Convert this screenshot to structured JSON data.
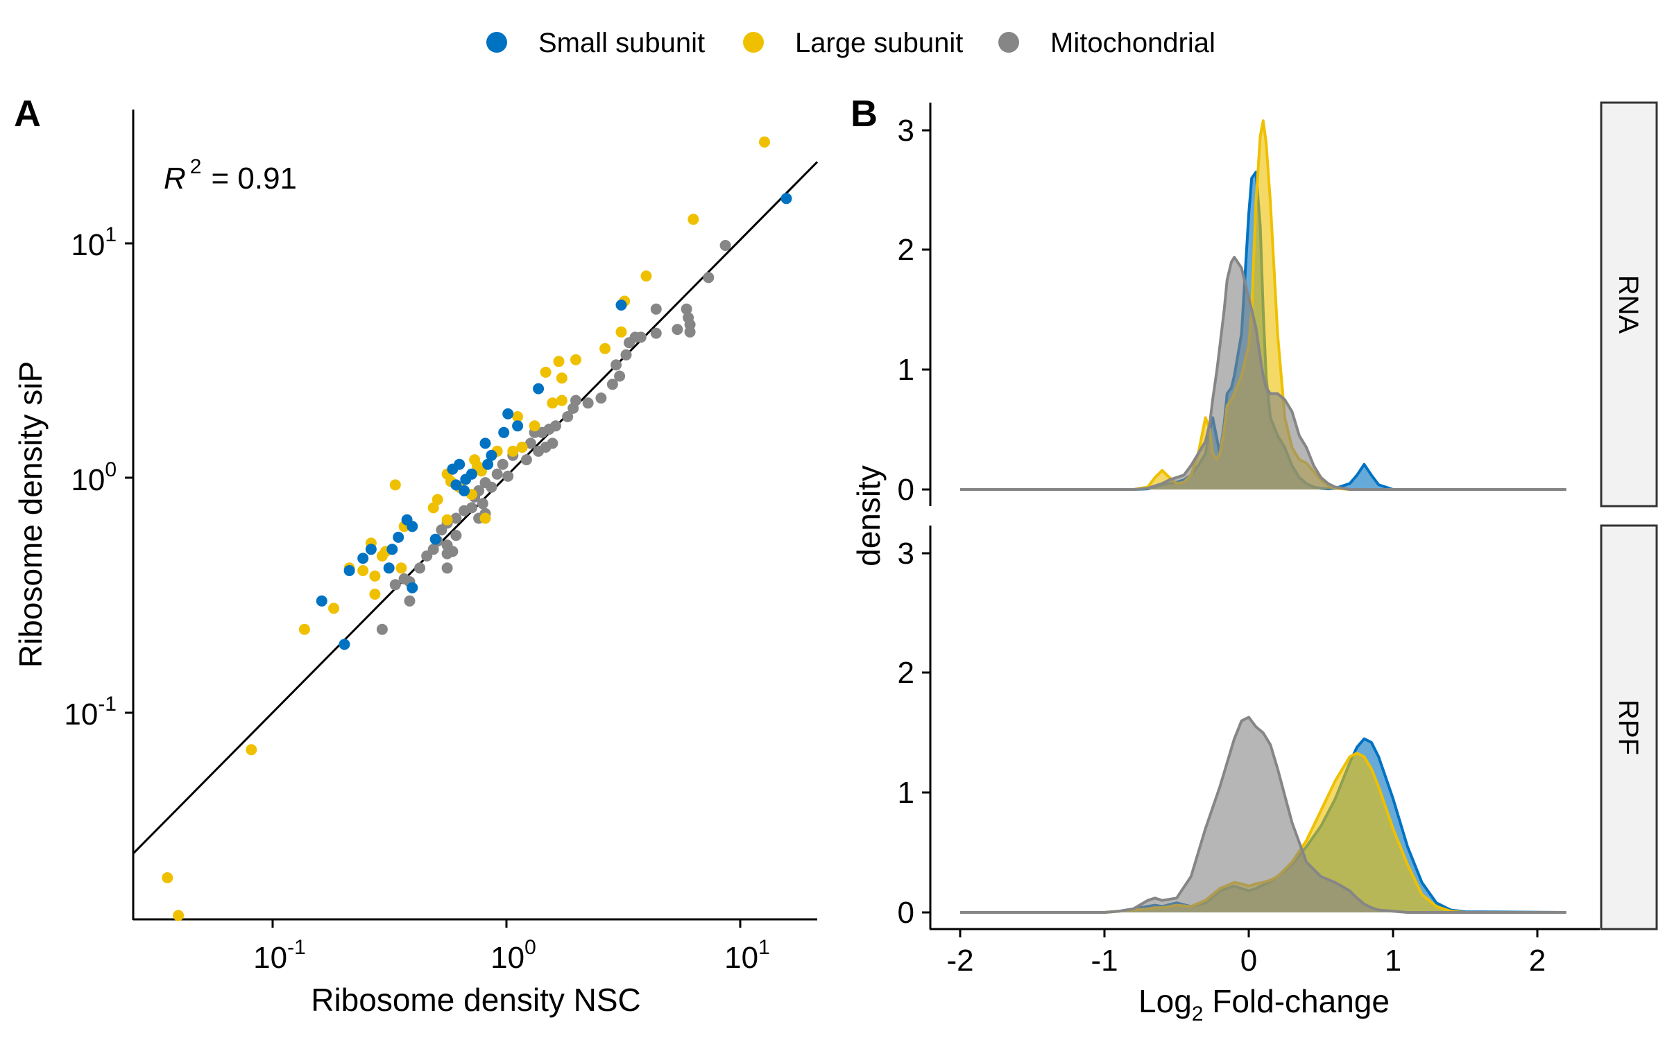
{
  "colors": {
    "small_subunit": "#0072C2",
    "large_subunit": "#EFC000",
    "mitochondrial": "#868686",
    "regression_line": "#000000",
    "strip_fill": "#F2F2F2"
  },
  "legend": [
    {
      "label": "Small subunit",
      "color": "#0072C2"
    },
    {
      "label": "Large subunit",
      "color": "#EFC000"
    },
    {
      "label": "Mitochondrial",
      "color": "#868686"
    }
  ],
  "panel_a": {
    "tag": "A",
    "r2_symbol": "R",
    "r2_exponent": "2",
    "r2_value": "= 0.91",
    "xlabel": "Ribosome density NSC",
    "ylabel": "Ribosome density siP",
    "xticks": [
      {
        "base": "10",
        "exp": "-1"
      },
      {
        "base": "10",
        "exp": "0"
      },
      {
        "base": "10",
        "exp": "1"
      }
    ],
    "yticks": [
      {
        "base": "10",
        "exp": "-1"
      },
      {
        "base": "10",
        "exp": "0"
      },
      {
        "base": "10",
        "exp": "1"
      }
    ]
  },
  "panel_b": {
    "tag": "B",
    "xlabel_main": "Log",
    "xlabel_sub": "2",
    "xlabel_rest": " Fold-change",
    "ylabel": "density",
    "xticks": [
      "-2",
      "-1",
      "0",
      "1",
      "2"
    ],
    "yticks": [
      "0",
      "1",
      "2",
      "3"
    ],
    "facets": [
      "RNA",
      "RPF"
    ]
  },
  "chart_data": [
    {
      "type": "scatter",
      "panel": "A",
      "xlabel": "Ribosome density NSC",
      "ylabel": "Ribosome density siP",
      "x_scale": "log10",
      "y_scale": "log10",
      "xlim": [
        0.025,
        21
      ],
      "ylim": [
        0.013,
        35
      ],
      "grid": false,
      "legend": "top",
      "annotation": "R^2 = 0.91",
      "regression_line": {
        "x": [
          0.025,
          21
        ],
        "y": [
          0.0247,
          21
        ]
      },
      "series": [
        {
          "name": "Small subunit",
          "points": [
            [
              15.5,
              14.7
            ],
            [
              3.05,
              5.2
            ],
            [
              1.35,
              2.3
            ],
            [
              1.0,
              1.8
            ],
            [
              1.1,
              1.6
            ],
            [
              0.96,
              1.5
            ],
            [
              0.8,
              1.35
            ],
            [
              0.85,
              1.2
            ],
            [
              0.82,
              1.1
            ],
            [
              0.58,
              1.05
            ],
            [
              0.62,
              1.1
            ],
            [
              0.7,
              1.0
            ],
            [
              0.66,
              0.95
            ],
            [
              0.6,
              0.9
            ],
            [
              0.65,
              0.85
            ],
            [
              0.37,
              0.64
            ],
            [
              0.39,
              0.6
            ],
            [
              0.34,
              0.54
            ],
            [
              0.49,
              0.53
            ],
            [
              0.32,
              0.48
            ],
            [
              0.26,
              0.48
            ],
            [
              0.24,
              0.44
            ],
            [
              0.21,
              0.39
            ],
            [
              0.31,
              0.4
            ],
            [
              0.39,
              0.33
            ],
            [
              0.16,
              0.29
            ],
            [
              0.2,
              0.19
            ]
          ]
        },
        {
          "name": "Large subunit",
          "points": [
            [
              12.5,
              25.5
            ],
            [
              6.2,
              12.0
            ],
            [
              3.9,
              6.9
            ],
            [
              3.15,
              5.4
            ],
            [
              3.05,
              4.0
            ],
            [
              2.6,
              3.4
            ],
            [
              1.95,
              3.05
            ],
            [
              1.65,
              3.0
            ],
            [
              1.45,
              2.7
            ],
            [
              1.7,
              2.55
            ],
            [
              1.7,
              2.05
            ],
            [
              1.55,
              2.0
            ],
            [
              1.1,
              1.75
            ],
            [
              1.3,
              1.6
            ],
            [
              1.15,
              1.3
            ],
            [
              1.05,
              1.25
            ],
            [
              0.9,
              1.25
            ],
            [
              0.72,
              1.15
            ],
            [
              0.74,
              1.08
            ],
            [
              0.77,
              1.03
            ],
            [
              0.55,
              1.0
            ],
            [
              0.57,
              0.93
            ],
            [
              0.62,
              0.88
            ],
            [
              0.7,
              0.82
            ],
            [
              0.5,
              0.78
            ],
            [
              0.48,
              0.72
            ],
            [
              0.55,
              0.64
            ],
            [
              0.8,
              0.65
            ],
            [
              0.33,
              0.9
            ],
            [
              0.36,
              0.6
            ],
            [
              0.3,
              0.47
            ],
            [
              0.29,
              0.45
            ],
            [
              0.26,
              0.51
            ],
            [
              0.24,
              0.39
            ],
            [
              0.21,
              0.4
            ],
            [
              0.27,
              0.37
            ],
            [
              0.35,
              0.4
            ],
            [
              0.27,
              0.31
            ],
            [
              0.18,
              0.27
            ],
            [
              0.135,
              0.22
            ],
            [
              0.08,
              0.068
            ],
            [
              0.035,
              0.0195
            ],
            [
              0.039,
              0.0135
            ]
          ]
        },
        {
          "name": "Mitochondrial",
          "points": [
            [
              8.5,
              9.3
            ],
            [
              7.2,
              6.8
            ],
            [
              5.8,
              5.0
            ],
            [
              4.3,
              5.0
            ],
            [
              5.9,
              4.6
            ],
            [
              6.0,
              4.3
            ],
            [
              6.0,
              4.0
            ],
            [
              5.3,
              4.1
            ],
            [
              4.3,
              3.95
            ],
            [
              3.3,
              3.6
            ],
            [
              3.5,
              3.8
            ],
            [
              3.7,
              3.8
            ],
            [
              3.2,
              3.2
            ],
            [
              2.9,
              2.9
            ],
            [
              3.0,
              2.6
            ],
            [
              2.8,
              2.4
            ],
            [
              2.5,
              2.1
            ],
            [
              2.2,
              2.0
            ],
            [
              1.95,
              2.05
            ],
            [
              1.9,
              1.9
            ],
            [
              1.8,
              1.75
            ],
            [
              1.6,
              1.6
            ],
            [
              1.5,
              1.55
            ],
            [
              1.4,
              1.5
            ],
            [
              1.3,
              1.5
            ],
            [
              1.55,
              1.35
            ],
            [
              1.45,
              1.3
            ],
            [
              1.35,
              1.25
            ],
            [
              1.25,
              1.35
            ],
            [
              1.15,
              1.3
            ],
            [
              1.05,
              1.2
            ],
            [
              1.2,
              1.15
            ],
            [
              0.95,
              1.1
            ],
            [
              1.0,
              0.98
            ],
            [
              0.9,
              1.0
            ],
            [
              0.8,
              0.92
            ],
            [
              0.85,
              0.88
            ],
            [
              0.75,
              0.85
            ],
            [
              0.72,
              0.8
            ],
            [
              0.78,
              0.75
            ],
            [
              0.7,
              0.72
            ],
            [
              0.65,
              0.7
            ],
            [
              0.8,
              0.68
            ],
            [
              0.75,
              0.65
            ],
            [
              0.6,
              0.65
            ],
            [
              0.55,
              0.62
            ],
            [
              0.52,
              0.58
            ],
            [
              0.5,
              0.52
            ],
            [
              0.55,
              0.5
            ],
            [
              0.58,
              0.47
            ],
            [
              0.48,
              0.48
            ],
            [
              0.45,
              0.45
            ],
            [
              0.55,
              0.46
            ],
            [
              0.6,
              0.55
            ],
            [
              0.42,
              0.4
            ],
            [
              0.36,
              0.36
            ],
            [
              0.38,
              0.35
            ],
            [
              0.33,
              0.34
            ],
            [
              0.38,
              0.29
            ],
            [
              0.55,
              0.4
            ],
            [
              0.29,
              0.22
            ]
          ]
        }
      ]
    },
    {
      "type": "area",
      "panel": "B",
      "facet": "RNA",
      "xlabel": "Log2 Fold-change",
      "ylabel": "density",
      "xlim": [
        -2.2,
        2.4
      ],
      "ylim": [
        0,
        3.2
      ],
      "grid": false,
      "x": [
        -2.0,
        -1.0,
        -0.9,
        -0.8,
        -0.7,
        -0.65,
        -0.6,
        -0.55,
        -0.5,
        -0.45,
        -0.4,
        -0.35,
        -0.3,
        -0.27,
        -0.25,
        -0.22,
        -0.2,
        -0.17,
        -0.15,
        -0.12,
        -0.1,
        -0.05,
        0.0,
        0.02,
        0.05,
        0.08,
        0.1,
        0.12,
        0.15,
        0.2,
        0.25,
        0.3,
        0.35,
        0.4,
        0.45,
        0.5,
        0.55,
        0.6,
        0.7,
        0.75,
        0.8,
        0.85,
        0.9,
        1.0,
        2.2
      ],
      "series": [
        {
          "name": "Small subunit",
          "values": [
            0,
            0,
            0,
            0,
            0.005,
            0.02,
            0.04,
            0.05,
            0.06,
            0.08,
            0.12,
            0.2,
            0.3,
            0.5,
            0.6,
            0.42,
            0.3,
            0.55,
            0.8,
            0.85,
            0.95,
            1.3,
            2.3,
            2.6,
            2.65,
            2.2,
            1.5,
            0.95,
            0.6,
            0.45,
            0.35,
            0.2,
            0.1,
            0.05,
            0.02,
            0.01,
            0.005,
            0.01,
            0.05,
            0.12,
            0.21,
            0.12,
            0.04,
            0,
            0
          ]
        },
        {
          "name": "Large subunit",
          "values": [
            0,
            0,
            0,
            0,
            0.02,
            0.1,
            0.16,
            0.1,
            0.05,
            0.06,
            0.12,
            0.3,
            0.6,
            0.5,
            0.3,
            0.25,
            0.3,
            0.5,
            0.7,
            0.75,
            0.8,
            0.95,
            1.2,
            1.5,
            2.4,
            2.95,
            3.08,
            2.9,
            2.4,
            1.3,
            0.6,
            0.35,
            0.25,
            0.22,
            0.15,
            0.08,
            0.03,
            0.01,
            0,
            0,
            0,
            0,
            0,
            0,
            0
          ]
        },
        {
          "name": "Mitochondrial",
          "values": [
            0,
            0,
            0,
            0,
            0.01,
            0.03,
            0.05,
            0.08,
            0.1,
            0.12,
            0.2,
            0.3,
            0.4,
            0.55,
            0.75,
            1.0,
            1.2,
            1.5,
            1.75,
            1.9,
            1.94,
            1.85,
            1.6,
            1.5,
            1.35,
            1.1,
            0.95,
            0.85,
            0.8,
            0.8,
            0.75,
            0.65,
            0.45,
            0.35,
            0.2,
            0.1,
            0.05,
            0.02,
            0,
            0,
            0,
            0,
            0,
            0,
            0
          ]
        }
      ]
    },
    {
      "type": "area",
      "panel": "B",
      "facet": "RPF",
      "xlabel": "Log2 Fold-change",
      "ylabel": "density",
      "xlim": [
        -2.2,
        2.4
      ],
      "ylim": [
        0,
        3.2
      ],
      "grid": false,
      "x": [
        -2.0,
        -1.0,
        -0.9,
        -0.8,
        -0.7,
        -0.65,
        -0.6,
        -0.5,
        -0.4,
        -0.3,
        -0.2,
        -0.1,
        -0.05,
        0.0,
        0.05,
        0.1,
        0.15,
        0.2,
        0.3,
        0.4,
        0.5,
        0.6,
        0.7,
        0.75,
        0.8,
        0.85,
        0.9,
        1.0,
        1.1,
        1.2,
        1.3,
        1.4,
        1.5,
        2.2
      ],
      "series": [
        {
          "name": "Small subunit",
          "values": [
            0,
            0,
            0.01,
            0.03,
            0.05,
            0.06,
            0.05,
            0.08,
            0.05,
            0.08,
            0.18,
            0.22,
            0.2,
            0.18,
            0.2,
            0.23,
            0.26,
            0.3,
            0.4,
            0.55,
            0.72,
            0.95,
            1.25,
            1.38,
            1.45,
            1.42,
            1.3,
            0.95,
            0.55,
            0.25,
            0.08,
            0.02,
            0.005,
            0
          ]
        },
        {
          "name": "Large subunit",
          "values": [
            0,
            0,
            0.01,
            0.02,
            0.03,
            0.04,
            0.04,
            0.06,
            0.05,
            0.1,
            0.2,
            0.25,
            0.24,
            0.22,
            0.24,
            0.25,
            0.27,
            0.3,
            0.42,
            0.6,
            0.85,
            1.1,
            1.3,
            1.33,
            1.3,
            1.2,
            1.05,
            0.7,
            0.4,
            0.15,
            0.05,
            0.01,
            0,
            0
          ]
        },
        {
          "name": "Mitochondrial",
          "values": [
            0,
            0,
            0.01,
            0.03,
            0.1,
            0.12,
            0.1,
            0.12,
            0.3,
            0.7,
            1.05,
            1.45,
            1.6,
            1.63,
            1.55,
            1.5,
            1.4,
            1.2,
            0.75,
            0.42,
            0.3,
            0.25,
            0.18,
            0.12,
            0.07,
            0.04,
            0.02,
            0.01,
            0,
            0,
            0,
            0,
            0,
            0
          ]
        }
      ]
    }
  ]
}
